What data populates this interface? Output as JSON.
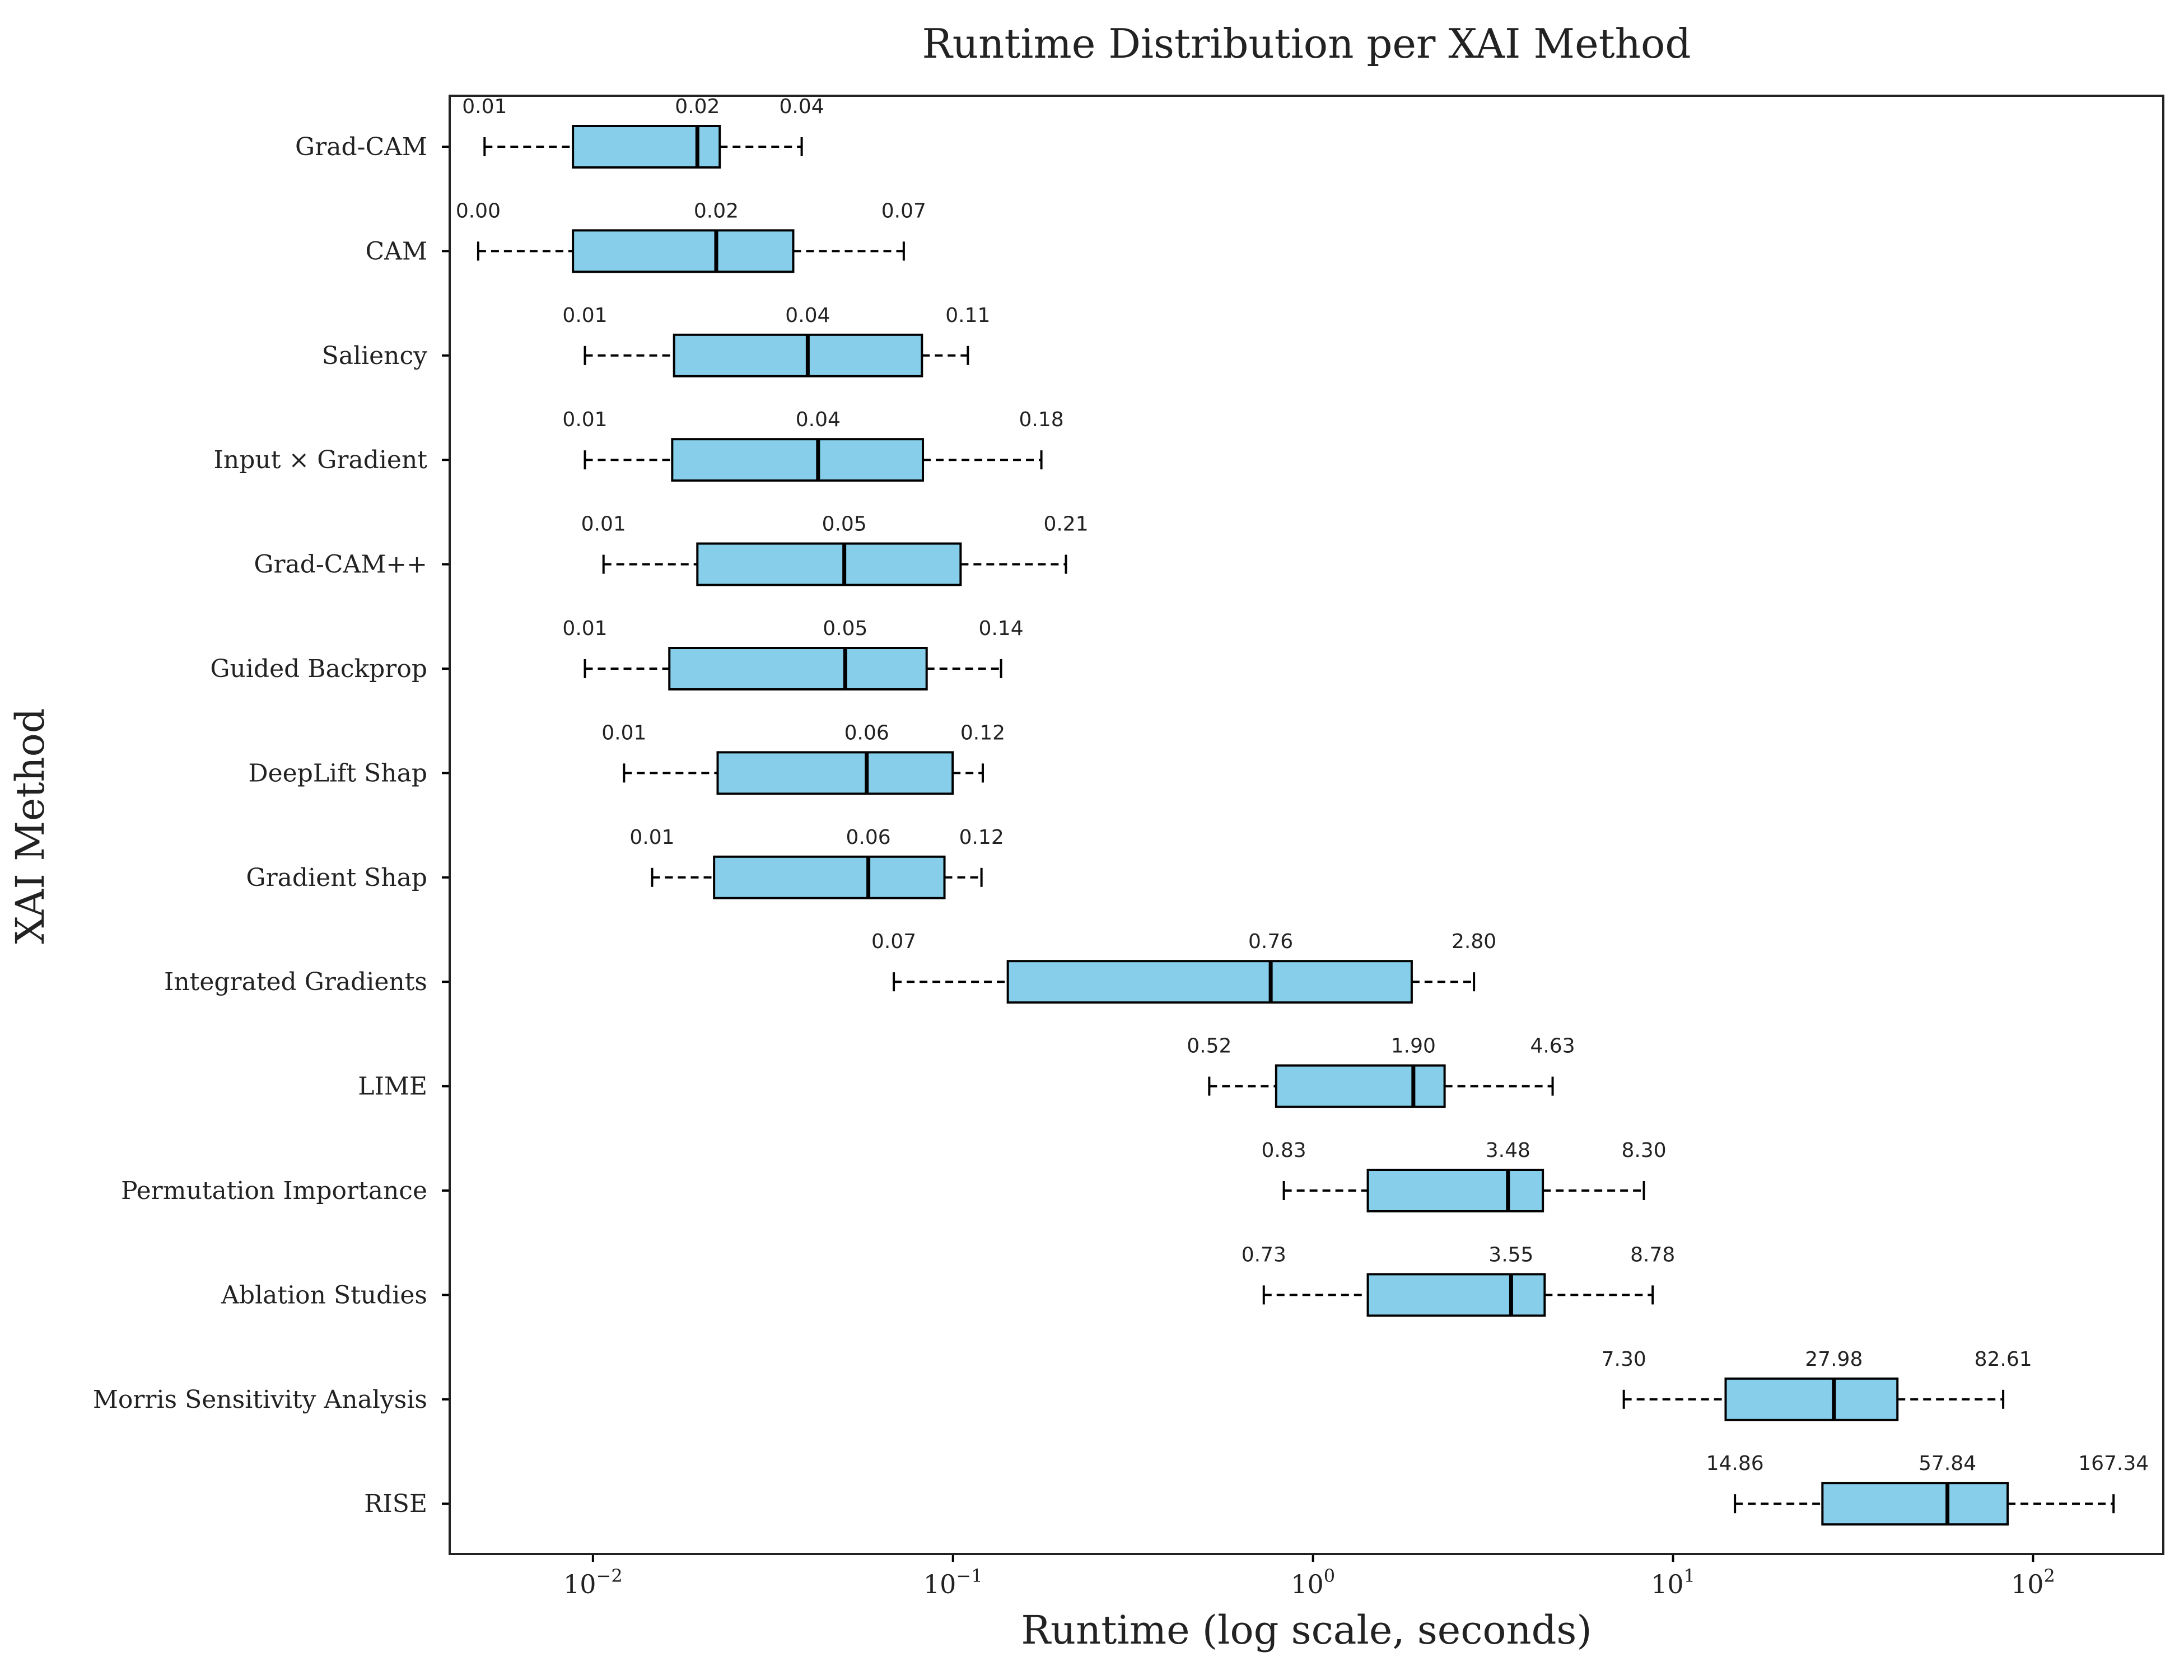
{
  "chart_data": {
    "type": "boxplot",
    "orientation": "horizontal",
    "title": "Runtime Distribution per XAI Method",
    "xlabel": "Runtime (log scale, seconds)",
    "ylabel": "XAI Method",
    "xscale": "log",
    "xlim": [
      0.004,
      230
    ],
    "xticks": [
      {
        "value": 0.01,
        "base": "10",
        "exp": "−2"
      },
      {
        "value": 0.1,
        "base": "10",
        "exp": "−1"
      },
      {
        "value": 1,
        "base": "10",
        "exp": "0"
      },
      {
        "value": 10,
        "base": "10",
        "exp": "1"
      },
      {
        "value": 100,
        "base": "10",
        "exp": "2"
      }
    ],
    "grid": false,
    "box_color": "#87CEEB",
    "edge_color": "#000000",
    "methods": [
      {
        "name": "Grad-CAM",
        "whisker_low": 0.005,
        "q1": 0.0088,
        "median": 0.0195,
        "q3": 0.0225,
        "whisker_high": 0.038,
        "labels": [
          "0.01",
          "0.02",
          "0.04"
        ]
      },
      {
        "name": "CAM",
        "whisker_low": 0.0048,
        "q1": 0.0088,
        "median": 0.022,
        "q3": 0.036,
        "whisker_high": 0.073,
        "labels": [
          "0.00",
          "0.02",
          "0.07"
        ]
      },
      {
        "name": "Saliency",
        "whisker_low": 0.0095,
        "q1": 0.0168,
        "median": 0.0395,
        "q3": 0.082,
        "whisker_high": 0.11,
        "labels": [
          "0.01",
          "0.04",
          "0.11"
        ]
      },
      {
        "name": "Input × Gradient",
        "whisker_low": 0.0095,
        "q1": 0.0166,
        "median": 0.0422,
        "q3": 0.0825,
        "whisker_high": 0.176,
        "labels": [
          "0.01",
          "0.04",
          "0.18"
        ]
      },
      {
        "name": "Grad-CAM++",
        "whisker_low": 0.0107,
        "q1": 0.0195,
        "median": 0.0499,
        "q3": 0.105,
        "whisker_high": 0.206,
        "labels": [
          "0.01",
          "0.05",
          "0.21"
        ]
      },
      {
        "name": "Guided Backprop",
        "whisker_low": 0.0095,
        "q1": 0.0163,
        "median": 0.0502,
        "q3": 0.0845,
        "whisker_high": 0.136,
        "labels": [
          "0.01",
          "0.05",
          "0.14"
        ]
      },
      {
        "name": "DeepLift Shap",
        "whisker_low": 0.0122,
        "q1": 0.0222,
        "median": 0.0576,
        "q3": 0.0998,
        "whisker_high": 0.121,
        "labels": [
          "0.01",
          "0.06",
          "0.12"
        ]
      },
      {
        "name": "Gradient Shap",
        "whisker_low": 0.0146,
        "q1": 0.0217,
        "median": 0.0582,
        "q3": 0.0947,
        "whisker_high": 0.12,
        "labels": [
          "0.01",
          "0.06",
          "0.12"
        ]
      },
      {
        "name": "Integrated Gradients",
        "whisker_low": 0.0685,
        "q1": 0.142,
        "median": 0.763,
        "q3": 1.88,
        "whisker_high": 2.8,
        "labels": [
          "0.07",
          "0.76",
          "2.80"
        ]
      },
      {
        "name": "LIME",
        "whisker_low": 0.515,
        "q1": 0.79,
        "median": 1.9,
        "q3": 2.32,
        "whisker_high": 4.63,
        "labels": [
          "0.52",
          "1.90",
          "4.63"
        ]
      },
      {
        "name": "Permutation Importance",
        "whisker_low": 0.83,
        "q1": 1.42,
        "median": 3.48,
        "q3": 4.35,
        "whisker_high": 8.3,
        "labels": [
          "0.83",
          "3.48",
          "8.30"
        ]
      },
      {
        "name": "Ablation Studies",
        "whisker_low": 0.73,
        "q1": 1.42,
        "median": 3.55,
        "q3": 4.4,
        "whisker_high": 8.78,
        "labels": [
          "0.73",
          "3.55",
          "8.78"
        ]
      },
      {
        "name": "Morris Sensitivity Analysis",
        "whisker_low": 7.3,
        "q1": 14.0,
        "median": 27.98,
        "q3": 42.0,
        "whisker_high": 82.61,
        "labels": [
          "7.30",
          "27.98",
          "82.61"
        ]
      },
      {
        "name": "RISE",
        "whisker_low": 14.86,
        "q1": 26.0,
        "median": 57.84,
        "q3": 85.0,
        "whisker_high": 167.34,
        "labels": [
          "14.86",
          "57.84",
          "167.34"
        ]
      }
    ]
  }
}
